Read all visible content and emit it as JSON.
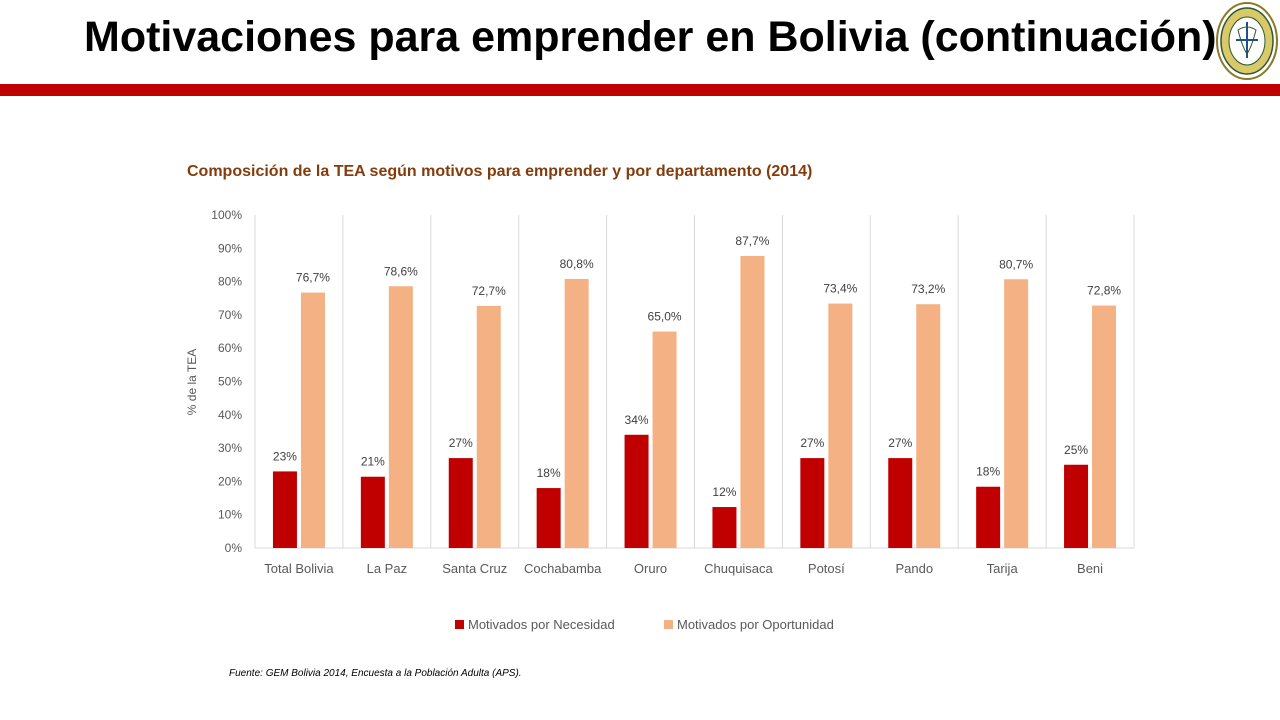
{
  "slide": {
    "title": "Motivaciones para emprender en Bolivia (continuación)",
    "source": "Fuente: GEM Bolivia 2014, Encuesta a la Población Adulta (APS)."
  },
  "colors": {
    "band": "#c00000",
    "necesidad": "#c00000",
    "oportunidad": "#f4b183",
    "chart_title": "#843c0c"
  },
  "chart_data": {
    "type": "bar",
    "title": "Composición de la TEA según motivos para emprender y por departamento (2014)",
    "ylabel": "% de la TEA",
    "xlabel": "",
    "ylim": [
      0,
      100
    ],
    "yticks": [
      "0%",
      "10%",
      "20%",
      "30%",
      "40%",
      "50%",
      "60%",
      "70%",
      "80%",
      "90%",
      "100%"
    ],
    "categories": [
      "Total Bolivia",
      "La Paz",
      "Santa Cruz",
      "Cochabamba",
      "Oruro",
      "Chuquisaca",
      "Potosí",
      "Pando",
      "Tarija",
      "Beni"
    ],
    "series": [
      {
        "name": "Motivados por Necesidad",
        "values": [
          23,
          21.4,
          27,
          18,
          34,
          12.3,
          27,
          27,
          18.4,
          25
        ],
        "labels": [
          "23%",
          "21%",
          "27%",
          "18%",
          "34%",
          "12%",
          "27%",
          "27%",
          "18%",
          "25%"
        ]
      },
      {
        "name": "Motivados por Oportunidad",
        "values": [
          76.7,
          78.6,
          72.7,
          80.8,
          65.0,
          87.7,
          73.4,
          73.2,
          80.7,
          72.8
        ],
        "labels": [
          "76,7%",
          "78,6%",
          "72,7%",
          "80,8%",
          "65,0%",
          "87,7%",
          "73,4%",
          "73,2%",
          "80,7%",
          "72,8%"
        ]
      }
    ],
    "grid": "vertical category separators",
    "legend": "bottom-center"
  }
}
